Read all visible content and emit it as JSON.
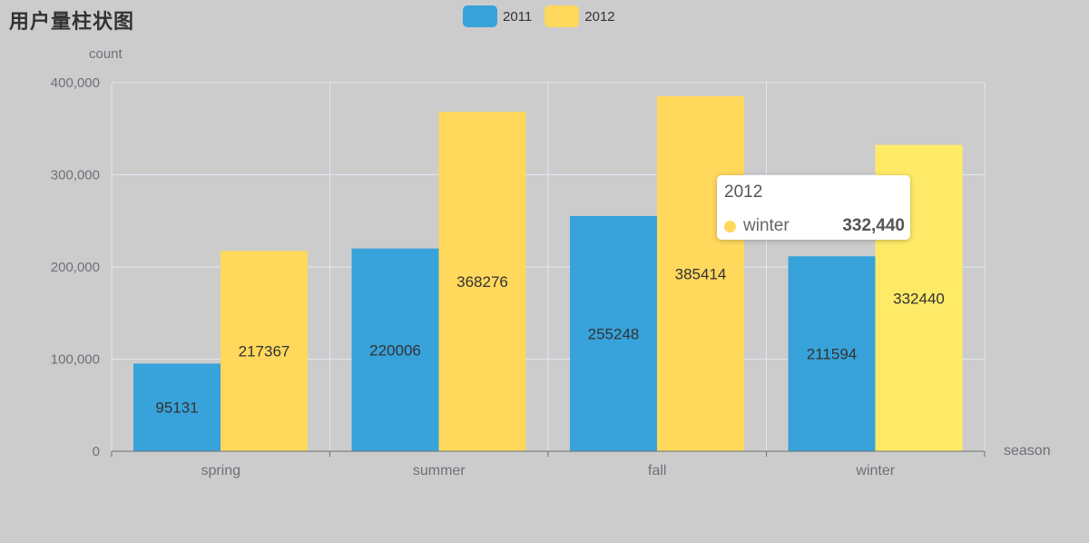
{
  "title": "用户量柱状图",
  "legend": [
    {
      "name": "2011",
      "color": "#38a2da"
    },
    {
      "name": "2012",
      "color": "#ffd85c"
    }
  ],
  "tooltip": {
    "title": "2012",
    "label": "winter",
    "value": "332,440",
    "dot_color": "#ffd85c"
  },
  "colors": {
    "background": "#cccccc",
    "series_2011": "#38a2da",
    "series_2012": "#ffd85c",
    "series_2012_highlight": "#ffea67",
    "grid": "#e0e6f1",
    "axis": "#6e7079",
    "text": "#6e7079",
    "label_text": "#333333"
  },
  "chart_data": {
    "type": "bar",
    "title": "用户量柱状图",
    "xlabel": "season",
    "ylabel": "count",
    "categories": [
      "spring",
      "summer",
      "fall",
      "winter"
    ],
    "series": [
      {
        "name": "2011",
        "values": [
          95131,
          220006,
          255248,
          211594
        ]
      },
      {
        "name": "2012",
        "values": [
          217367,
          368276,
          385414,
          332440
        ]
      }
    ],
    "ylim": [
      0,
      400000
    ],
    "yticks": [
      0,
      100000,
      200000,
      300000,
      400000
    ],
    "ytick_labels": [
      "0",
      "100,000",
      "200,000",
      "300,000",
      "400,000"
    ],
    "grid": true,
    "legend_position": "top-center",
    "highlighted": {
      "series": "2012",
      "category": "winter"
    }
  }
}
